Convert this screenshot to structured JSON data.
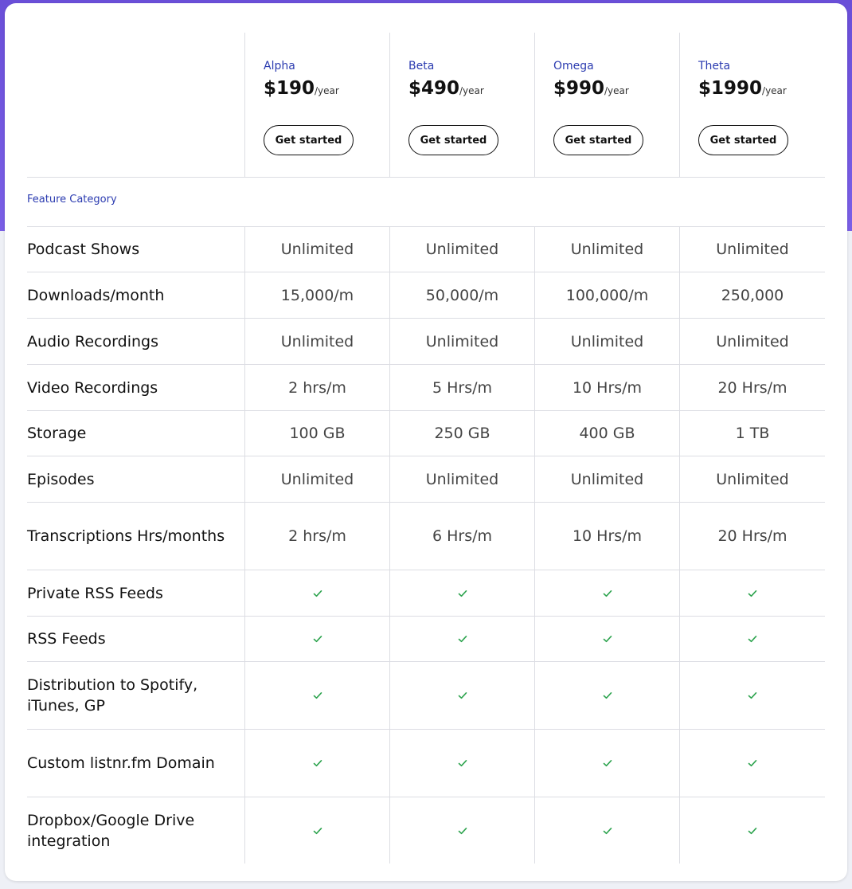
{
  "plans": [
    {
      "name": "Alpha",
      "price": "$190",
      "unit": "/year",
      "cta": "Get started"
    },
    {
      "name": "Beta",
      "price": "$490",
      "unit": "/year",
      "cta": "Get started"
    },
    {
      "name": "Omega",
      "price": "$990",
      "unit": "/year",
      "cta": "Get started"
    },
    {
      "name": "Theta",
      "price": "$1990",
      "unit": "/year",
      "cta": "Get started"
    }
  ],
  "category_label": "Feature Category",
  "features": [
    {
      "label": "Podcast Shows",
      "values": [
        "Unlimited",
        "Unlimited",
        "Unlimited",
        "Unlimited"
      ]
    },
    {
      "label": "Downloads/month",
      "values": [
        "15,000/m",
        "50,000/m",
        "100,000/m",
        "250,000"
      ]
    },
    {
      "label": "Audio Recordings",
      "values": [
        "Unlimited",
        "Unlimited",
        "Unlimited",
        "Unlimited"
      ]
    },
    {
      "label": "Video Recordings",
      "values": [
        "2 hrs/m",
        "5 Hrs/m",
        "10 Hrs/m",
        "20 Hrs/m"
      ]
    },
    {
      "label": "Storage",
      "values": [
        "100 GB",
        "250 GB",
        "400 GB",
        "1 TB"
      ]
    },
    {
      "label": "Episodes",
      "values": [
        "Unlimited",
        "Unlimited",
        "Unlimited",
        "Unlimited"
      ]
    },
    {
      "label": "Transcriptions Hrs/months",
      "values": [
        "2 hrs/m",
        "6 Hrs/m",
        "10 Hrs/m",
        "20 Hrs/m"
      ]
    },
    {
      "label": "Private RSS Feeds",
      "check": true
    },
    {
      "label": "RSS Feeds",
      "check": true
    },
    {
      "label": "Distribution to Spotify, iTunes, GP",
      "check": true
    },
    {
      "label": "Custom listnr.fm Domain",
      "check": true
    },
    {
      "label": "Dropbox/Google Drive integration",
      "check": true
    }
  ],
  "colors": {
    "accent": "#2b3bb0",
    "check": "#2ea44f",
    "header_bg": "#6a4fd8"
  },
  "icons": {
    "check": "check-icon"
  }
}
